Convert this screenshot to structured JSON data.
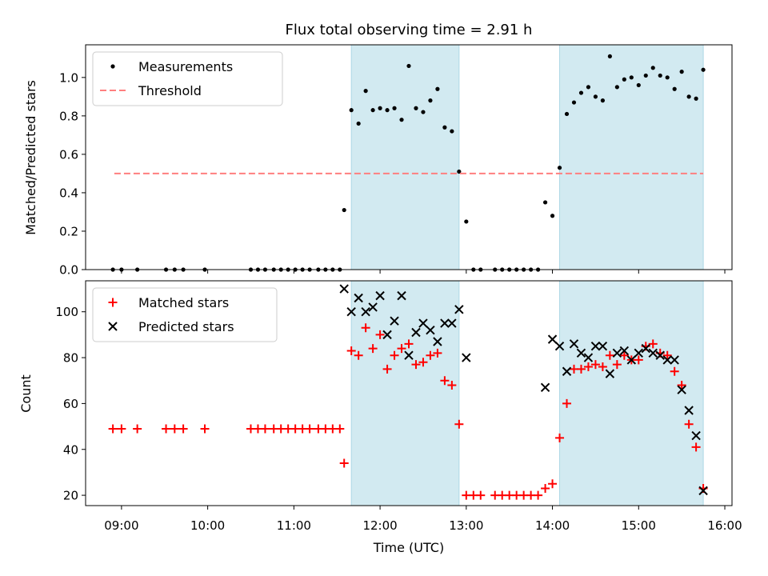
{
  "chart_data": {
    "title": "Flux total observing time = 2.91 h",
    "xlabel": "Time (UTC)",
    "xlim": [
      "08:35",
      "16:05"
    ],
    "x_ticks": [
      "09:00",
      "10:00",
      "11:00",
      "12:00",
      "13:00",
      "14:00",
      "15:00",
      "16:00"
    ],
    "colors": {
      "shade": "#add8e6",
      "measure": "#000000",
      "threshold": "#ff7f7f",
      "matched": "#ff0000",
      "predicted": "#000000"
    },
    "shaded_intervals": [
      [
        "11:40",
        "12:55"
      ],
      [
        "14:05",
        "15:45"
      ]
    ],
    "panels": [
      {
        "type": "scatter",
        "ylabel": "Matched/Predicted stars",
        "ylim": [
          0,
          1.17
        ],
        "y_ticks": [
          "0.0",
          "0.2",
          "0.4",
          "0.6",
          "0.8",
          "1.0"
        ],
        "legend": {
          "position": "top-left",
          "entries": [
            "Measurements",
            "Threshold"
          ]
        },
        "series": [
          {
            "name": "Measurements",
            "marker": "dot",
            "points": [
              [
                "08:54",
                0
              ],
              [
                "09:00",
                0
              ],
              [
                "09:11",
                0
              ],
              [
                "09:31",
                0
              ],
              [
                "09:37",
                0
              ],
              [
                "09:43",
                0
              ],
              [
                "09:58",
                0
              ],
              [
                "10:30",
                0
              ],
              [
                "10:35",
                0
              ],
              [
                "10:40",
                0
              ],
              [
                "10:46",
                0
              ],
              [
                "10:51",
                0
              ],
              [
                "10:56",
                0
              ],
              [
                "11:01",
                0
              ],
              [
                "11:06",
                0
              ],
              [
                "11:11",
                0
              ],
              [
                "11:17",
                0
              ],
              [
                "11:22",
                0
              ],
              [
                "11:27",
                0
              ],
              [
                "11:32",
                0
              ],
              [
                "11:35",
                0.31
              ],
              [
                "11:40",
                0.83
              ],
              [
                "11:45",
                0.76
              ],
              [
                "11:50",
                0.93
              ],
              [
                "11:55",
                0.83
              ],
              [
                "12:00",
                0.84
              ],
              [
                "12:05",
                0.83
              ],
              [
                "12:10",
                0.84
              ],
              [
                "12:15",
                0.78
              ],
              [
                "12:20",
                1.06
              ],
              [
                "12:25",
                0.84
              ],
              [
                "12:30",
                0.82
              ],
              [
                "12:35",
                0.88
              ],
              [
                "12:40",
                0.94
              ],
              [
                "12:45",
                0.74
              ],
              [
                "12:50",
                0.72
              ],
              [
                "12:55",
                0.51
              ],
              [
                "13:00",
                0.25
              ],
              [
                "13:05",
                0
              ],
              [
                "13:10",
                0
              ],
              [
                "13:20",
                0
              ],
              [
                "13:25",
                0
              ],
              [
                "13:30",
                0
              ],
              [
                "13:35",
                0
              ],
              [
                "13:40",
                0
              ],
              [
                "13:45",
                0
              ],
              [
                "13:50",
                0
              ],
              [
                "13:55",
                0.35
              ],
              [
                "14:00",
                0.28
              ],
              [
                "14:05",
                0.53
              ],
              [
                "14:10",
                0.81
              ],
              [
                "14:15",
                0.87
              ],
              [
                "14:20",
                0.92
              ],
              [
                "14:25",
                0.95
              ],
              [
                "14:30",
                0.9
              ],
              [
                "14:35",
                0.88
              ],
              [
                "14:40",
                1.11
              ],
              [
                "14:45",
                0.95
              ],
              [
                "14:50",
                0.99
              ],
              [
                "14:55",
                1.0
              ],
              [
                "15:00",
                0.96
              ],
              [
                "15:05",
                1.01
              ],
              [
                "15:10",
                1.05
              ],
              [
                "15:15",
                1.01
              ],
              [
                "15:20",
                1.0
              ],
              [
                "15:25",
                0.94
              ],
              [
                "15:30",
                1.03
              ],
              [
                "15:35",
                0.9
              ],
              [
                "15:40",
                0.89
              ],
              [
                "15:45",
                1.04
              ]
            ]
          },
          {
            "name": "Threshold",
            "type": "line",
            "style": "dashed",
            "x_range": [
              "08:55",
              "15:45"
            ],
            "y": 0.5
          }
        ]
      },
      {
        "type": "scatter",
        "ylabel": "Count",
        "ylim": [
          15.5,
          113.5
        ],
        "y_ticks": [
          "20",
          "40",
          "60",
          "80",
          "100"
        ],
        "legend": {
          "position": "top-left",
          "entries": [
            "Matched stars",
            "Predicted stars"
          ]
        },
        "series": [
          {
            "name": "Matched stars",
            "marker": "plus",
            "points": [
              [
                "08:54",
                49
              ],
              [
                "09:00",
                49
              ],
              [
                "09:11",
                49
              ],
              [
                "09:31",
                49
              ],
              [
                "09:37",
                49
              ],
              [
                "09:43",
                49
              ],
              [
                "09:58",
                49
              ],
              [
                "10:30",
                49
              ],
              [
                "10:35",
                49
              ],
              [
                "10:40",
                49
              ],
              [
                "10:46",
                49
              ],
              [
                "10:51",
                49
              ],
              [
                "10:56",
                49
              ],
              [
                "11:01",
                49
              ],
              [
                "11:06",
                49
              ],
              [
                "11:11",
                49
              ],
              [
                "11:17",
                49
              ],
              [
                "11:22",
                49
              ],
              [
                "11:27",
                49
              ],
              [
                "11:32",
                49
              ],
              [
                "11:35",
                34
              ],
              [
                "11:40",
                83
              ],
              [
                "11:45",
                81
              ],
              [
                "11:50",
                93
              ],
              [
                "11:55",
                84
              ],
              [
                "12:00",
                90
              ],
              [
                "12:05",
                75
              ],
              [
                "12:10",
                81
              ],
              [
                "12:15",
                84
              ],
              [
                "12:20",
                86
              ],
              [
                "12:25",
                77
              ],
              [
                "12:30",
                78
              ],
              [
                "12:35",
                81
              ],
              [
                "12:40",
                82
              ],
              [
                "12:45",
                70
              ],
              [
                "12:50",
                68
              ],
              [
                "12:55",
                51
              ],
              [
                "13:00",
                20
              ],
              [
                "13:05",
                20
              ],
              [
                "13:10",
                20
              ],
              [
                "13:20",
                20
              ],
              [
                "13:25",
                20
              ],
              [
                "13:30",
                20
              ],
              [
                "13:35",
                20
              ],
              [
                "13:40",
                20
              ],
              [
                "13:45",
                20
              ],
              [
                "13:50",
                20
              ],
              [
                "13:55",
                23
              ],
              [
                "14:00",
                25
              ],
              [
                "14:05",
                45
              ],
              [
                "14:10",
                60
              ],
              [
                "14:15",
                75
              ],
              [
                "14:20",
                75
              ],
              [
                "14:25",
                76
              ],
              [
                "14:30",
                77
              ],
              [
                "14:35",
                76
              ],
              [
                "14:40",
                81
              ],
              [
                "14:45",
                77
              ],
              [
                "14:50",
                81
              ],
              [
                "14:55",
                79
              ],
              [
                "15:00",
                79
              ],
              [
                "15:05",
                85
              ],
              [
                "15:10",
                86
              ],
              [
                "15:15",
                82
              ],
              [
                "15:20",
                81
              ],
              [
                "15:25",
                74
              ],
              [
                "15:30",
                68
              ],
              [
                "15:35",
                51
              ],
              [
                "15:40",
                41
              ],
              [
                "15:45",
                23
              ]
            ]
          },
          {
            "name": "Predicted stars",
            "marker": "x",
            "points": [
              [
                "11:35",
                110
              ],
              [
                "11:40",
                100
              ],
              [
                "11:45",
                106
              ],
              [
                "11:50",
                100
              ],
              [
                "11:55",
                102
              ],
              [
                "12:00",
                107
              ],
              [
                "12:05",
                90
              ],
              [
                "12:10",
                96
              ],
              [
                "12:15",
                107
              ],
              [
                "12:20",
                81
              ],
              [
                "12:25",
                91
              ],
              [
                "12:30",
                95
              ],
              [
                "12:35",
                92
              ],
              [
                "12:40",
                87
              ],
              [
                "12:45",
                95
              ],
              [
                "12:50",
                95
              ],
              [
                "12:55",
                101
              ],
              [
                "13:00",
                80
              ],
              [
                "13:55",
                67
              ],
              [
                "14:00",
                88
              ],
              [
                "14:05",
                85
              ],
              [
                "14:10",
                74
              ],
              [
                "14:15",
                86
              ],
              [
                "14:20",
                82
              ],
              [
                "14:25",
                80
              ],
              [
                "14:30",
                85
              ],
              [
                "14:35",
                85
              ],
              [
                "14:40",
                73
              ],
              [
                "14:45",
                82
              ],
              [
                "14:50",
                83
              ],
              [
                "14:55",
                79
              ],
              [
                "15:00",
                82
              ],
              [
                "15:05",
                84
              ],
              [
                "15:10",
                82
              ],
              [
                "15:15",
                81
              ],
              [
                "15:20",
                79
              ],
              [
                "15:25",
                79
              ],
              [
                "15:30",
                66
              ],
              [
                "15:35",
                57
              ],
              [
                "15:40",
                46
              ],
              [
                "15:45",
                22
              ]
            ]
          }
        ]
      }
    ]
  }
}
